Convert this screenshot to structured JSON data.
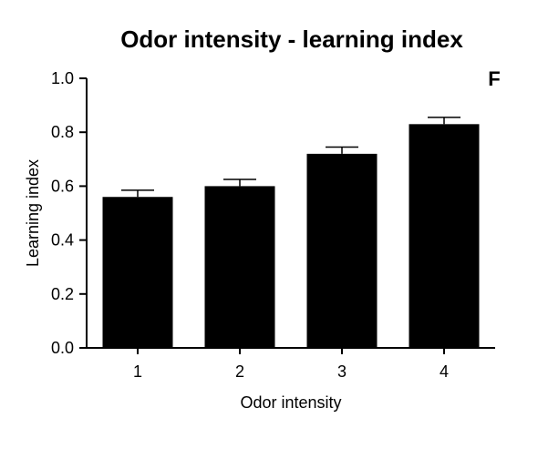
{
  "chart_data": {
    "type": "bar",
    "title": "Odor intensity - learning index",
    "panel_label": "F",
    "xlabel": "Odor intensity",
    "ylabel": "Learning index",
    "categories": [
      "1",
      "2",
      "3",
      "4"
    ],
    "values": [
      0.56,
      0.6,
      0.72,
      0.83
    ],
    "error_upper": [
      0.025,
      0.025,
      0.025,
      0.025
    ],
    "ylim": [
      0,
      1
    ],
    "yticks": [
      "0.0",
      "0.2",
      "0.4",
      "0.6",
      "0.8",
      "1.0"
    ],
    "grid": false,
    "legend": "none",
    "bar_color": "#000000",
    "axis_color": "#000000"
  }
}
